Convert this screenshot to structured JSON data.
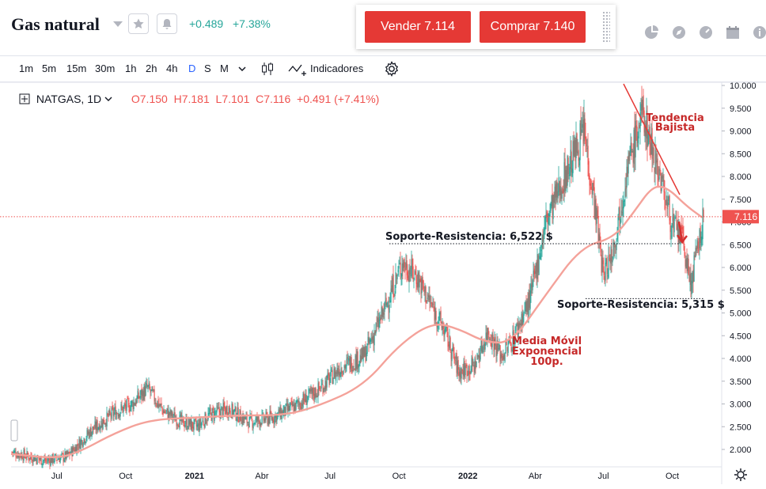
{
  "header": {
    "instrument_title": "Gas natural",
    "change_abs": "+0.489",
    "change_pct": "+7.38%"
  },
  "trade": {
    "sell_label": "Vender 7.114",
    "buy_label": "Comprar 7.140"
  },
  "toolbar": {
    "timeframes": [
      "1m",
      "5m",
      "15m",
      "30m",
      "1h",
      "2h",
      "4h",
      "D",
      "S",
      "M"
    ],
    "active_timeframe": "D",
    "indicators_label": "Indicadores"
  },
  "legend": {
    "symbol": "NATGAS, 1D",
    "open": "O7.150",
    "high": "H7.181",
    "low": "L7.101",
    "close": "C7.116",
    "change": "+0.491 (+7.41%)"
  },
  "colors": {
    "up": "#26a69a",
    "down": "#ef5350",
    "ema": "#f4a29a",
    "annotation": "#c62828",
    "sell": "#e53935",
    "buy": "#e53935"
  },
  "icons": [
    "star-icon",
    "alert-icon",
    "pie-icon",
    "compass-icon",
    "gauge-icon",
    "calendar-icon",
    "info-icon",
    "candles-icon",
    "indicators-icon",
    "settings-icon",
    "gear-icon"
  ],
  "chart_data": {
    "type": "candlestick",
    "x_ticks": [
      "Jul",
      "Oct",
      "2021",
      "Abr",
      "Jul",
      "Oct",
      "2022",
      "Abr",
      "Jul",
      "Oct"
    ],
    "y_ticks": [
      "10.000",
      "9.500",
      "9.000",
      "8.500",
      "8.000",
      "7.500",
      "7.000",
      "6.500",
      "6.000",
      "5.500",
      "5.000",
      "4.500",
      "4.000",
      "3.500",
      "3.000",
      "2.500",
      "2.000"
    ],
    "ylim": [
      1.6,
      10.05
    ],
    "x_range": [
      "2020-05",
      "2022-12"
    ],
    "last_price": 7.116,
    "last_price_label": "7.116",
    "price_points": [
      {
        "date": "2020-05-01",
        "value": 1.95
      },
      {
        "date": "2020-06-15",
        "value": 1.75
      },
      {
        "date": "2020-07-15",
        "value": 1.85
      },
      {
        "date": "2020-08-15",
        "value": 2.4
      },
      {
        "date": "2020-09-15",
        "value": 2.8
      },
      {
        "date": "2020-10-10",
        "value": 3.0
      },
      {
        "date": "2020-10-30",
        "value": 3.35
      },
      {
        "date": "2020-11-20",
        "value": 2.85
      },
      {
        "date": "2020-12-15",
        "value": 2.6
      },
      {
        "date": "2021-01-05",
        "value": 2.5
      },
      {
        "date": "2021-01-20",
        "value": 2.75
      },
      {
        "date": "2021-02-15",
        "value": 2.9
      },
      {
        "date": "2021-03-15",
        "value": 2.6
      },
      {
        "date": "2021-04-15",
        "value": 2.7
      },
      {
        "date": "2021-05-15",
        "value": 2.95
      },
      {
        "date": "2021-06-15",
        "value": 3.3
      },
      {
        "date": "2021-07-15",
        "value": 3.8
      },
      {
        "date": "2021-08-15",
        "value": 4.05
      },
      {
        "date": "2021-09-10",
        "value": 5.0
      },
      {
        "date": "2021-10-05",
        "value": 6.1
      },
      {
        "date": "2021-10-25",
        "value": 5.8
      },
      {
        "date": "2021-11-15",
        "value": 5.1
      },
      {
        "date": "2021-12-01",
        "value": 4.6
      },
      {
        "date": "2021-12-20",
        "value": 3.7
      },
      {
        "date": "2022-01-10",
        "value": 3.85
      },
      {
        "date": "2022-01-28",
        "value": 4.6
      },
      {
        "date": "2022-02-15",
        "value": 4.05
      },
      {
        "date": "2022-03-01",
        "value": 4.4
      },
      {
        "date": "2022-03-25",
        "value": 5.3
      },
      {
        "date": "2022-04-15",
        "value": 7.0
      },
      {
        "date": "2022-05-10",
        "value": 8.0
      },
      {
        "date": "2022-06-05",
        "value": 9.0
      },
      {
        "date": "2022-06-20",
        "value": 7.3
      },
      {
        "date": "2022-07-01",
        "value": 5.8
      },
      {
        "date": "2022-07-15",
        "value": 6.5
      },
      {
        "date": "2022-08-01",
        "value": 8.1
      },
      {
        "date": "2022-08-22",
        "value": 9.4
      },
      {
        "date": "2022-09-15",
        "value": 8.0
      },
      {
        "date": "2022-10-01",
        "value": 6.9
      },
      {
        "date": "2022-10-15",
        "value": 6.6
      },
      {
        "date": "2022-10-25",
        "value": 5.6
      },
      {
        "date": "2022-11-05",
        "value": 6.5
      },
      {
        "date": "2022-11-12",
        "value": 7.1
      }
    ],
    "ema_points": [
      {
        "date": "2020-05-01",
        "value": 1.9
      },
      {
        "date": "2020-07-01",
        "value": 1.8
      },
      {
        "date": "2020-08-01",
        "value": 1.95
      },
      {
        "date": "2020-09-15",
        "value": 2.35
      },
      {
        "date": "2020-11-01",
        "value": 2.65
      },
      {
        "date": "2021-01-01",
        "value": 2.7
      },
      {
        "date": "2021-03-01",
        "value": 2.75
      },
      {
        "date": "2021-05-01",
        "value": 2.75
      },
      {
        "date": "2021-06-15",
        "value": 2.95
      },
      {
        "date": "2021-08-15",
        "value": 3.4
      },
      {
        "date": "2021-10-01",
        "value": 4.3
      },
      {
        "date": "2021-11-15",
        "value": 4.8
      },
      {
        "date": "2021-12-20",
        "value": 4.65
      },
      {
        "date": "2022-01-25",
        "value": 4.35
      },
      {
        "date": "2022-03-01",
        "value": 4.35
      },
      {
        "date": "2022-04-15",
        "value": 5.4
      },
      {
        "date": "2022-06-01",
        "value": 6.45
      },
      {
        "date": "2022-07-15",
        "value": 6.65
      },
      {
        "date": "2022-08-10",
        "value": 7.2
      },
      {
        "date": "2022-09-05",
        "value": 7.8
      },
      {
        "date": "2022-09-25",
        "value": 7.75
      },
      {
        "date": "2022-10-20",
        "value": 7.35
      },
      {
        "date": "2022-11-10",
        "value": 7.1
      }
    ],
    "annotations": {
      "trend_label_1": "Tendencia",
      "trend_label_2": "Bajista",
      "support_high": "Soporte-Resistencia: 6,522 $",
      "support_high_value": 6.522,
      "support_low": "Soporte-Resistencia: 5,315 $",
      "support_low_value": 5.315,
      "ema_label_1": "Media Móvil",
      "ema_label_2": "Exponencial",
      "ema_label_3": "100p."
    }
  }
}
